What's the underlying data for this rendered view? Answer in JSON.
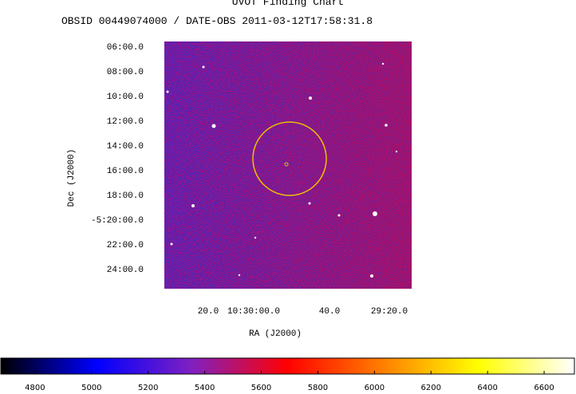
{
  "chart_data": {
    "type": "image",
    "title": "UVOT Finding Chart",
    "subtitle": "OBSID 00449074000 / DATE-OBS 2011-03-12T17:58:31.8",
    "xlabel": "RA (J2000)",
    "ylabel": "Dec (J2000)",
    "xtick_labels": [
      "20.0",
      "10:30:00.0",
      "40.0",
      "29:20.0"
    ],
    "ytick_labels": [
      "06:00.0",
      "08:00.0",
      "10:00.0",
      "12:00.0",
      "14:00.0",
      "16:00.0",
      "18:00.0",
      "-5:20:00.0",
      "22:00.0",
      "24:00.0"
    ],
    "colorbar": {
      "lim": [
        4679,
        6707
      ],
      "ticks": [
        4800,
        5000,
        5200,
        5400,
        5600,
        5800,
        6000,
        6200,
        6400,
        6600
      ],
      "colors": [
        "#000000",
        "#0000ff",
        "#8020c0",
        "#ff0000",
        "#ff8000",
        "#ffff00",
        "#ffffff"
      ]
    }
  }
}
